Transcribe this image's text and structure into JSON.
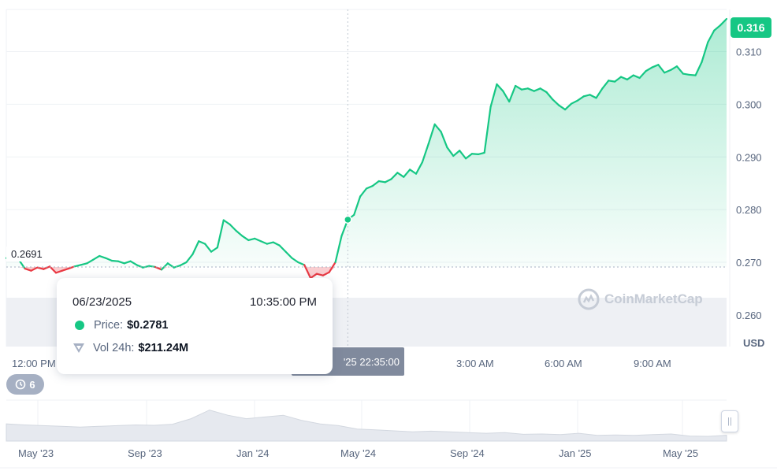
{
  "chart_data": {
    "type": "line",
    "current_price": "0.316",
    "reference_price": "0.2691",
    "reference_value": 0.2691,
    "currency": "USD",
    "ylim": [
      0.254,
      0.318
    ],
    "y_ticks": [
      0.26,
      0.27,
      0.28,
      0.29,
      0.3,
      0.31
    ],
    "y_tick_labels": [
      "0.260",
      "0.270",
      "0.280",
      "0.290",
      "0.300",
      "0.310"
    ],
    "x_tick_labels": [
      "12:00 PM",
      "3:00 AM",
      "6:00 AM",
      "9:00 AM"
    ],
    "series": [
      {
        "values": [
          0.2708,
          0.2712,
          0.2705,
          0.2688,
          0.2684,
          0.269,
          0.2687,
          0.2692,
          0.268,
          0.2684,
          0.2688,
          0.2692,
          0.2695,
          0.2698,
          0.2705,
          0.2712,
          0.2708,
          0.2703,
          0.2702,
          0.2698,
          0.2702,
          0.2695,
          0.269,
          0.2693,
          0.2691,
          0.2686,
          0.2698,
          0.269,
          0.2694,
          0.27,
          0.2715,
          0.274,
          0.2735,
          0.272,
          0.2728,
          0.278,
          0.2772,
          0.276,
          0.275,
          0.2742,
          0.2745,
          0.274,
          0.2735,
          0.2738,
          0.2732,
          0.272,
          0.2708,
          0.27,
          0.2695,
          0.267,
          0.2678,
          0.2675,
          0.2681,
          0.27,
          0.275,
          0.2781,
          0.279,
          0.2825,
          0.284,
          0.2845,
          0.2854,
          0.2852,
          0.2858,
          0.287,
          0.2862,
          0.2876,
          0.2868,
          0.289,
          0.2925,
          0.2962,
          0.2948,
          0.2918,
          0.2902,
          0.2912,
          0.2897,
          0.2906,
          0.2905,
          0.2908,
          0.2995,
          0.3038,
          0.3025,
          0.3005,
          0.3035,
          0.3028,
          0.303,
          0.3025,
          0.303,
          0.3023,
          0.3009,
          0.2998,
          0.299,
          0.3001,
          0.3007,
          0.3015,
          0.3018,
          0.3012,
          0.303,
          0.3045,
          0.3043,
          0.3052,
          0.3047,
          0.3055,
          0.305,
          0.3063,
          0.307,
          0.3075,
          0.306,
          0.3065,
          0.3072,
          0.3058,
          0.3056,
          0.3055,
          0.308,
          0.3118,
          0.314,
          0.315,
          0.3162
        ]
      }
    ],
    "tooltip": {
      "date": "06/23/2025",
      "time": "10:35:00 PM",
      "price_label": "Price:",
      "price_value": "$0.2781",
      "vol_label": "Vol 24h:",
      "vol_value": "$211.24M"
    },
    "crosshair_time_label": "'25 22:35:00",
    "navigator_labels": [
      "May '23",
      "Sep '23",
      "Jan '24",
      "May '24",
      "Sep '24",
      "Jan '25",
      "May '25"
    ],
    "history_count": "6",
    "colors": {
      "up": "#16c784",
      "down": "#ea3943",
      "grid": "#eff2f5",
      "text": "#58667e"
    }
  },
  "watermark": "CoinMarketCap",
  "handle_icon": "grip-icon"
}
